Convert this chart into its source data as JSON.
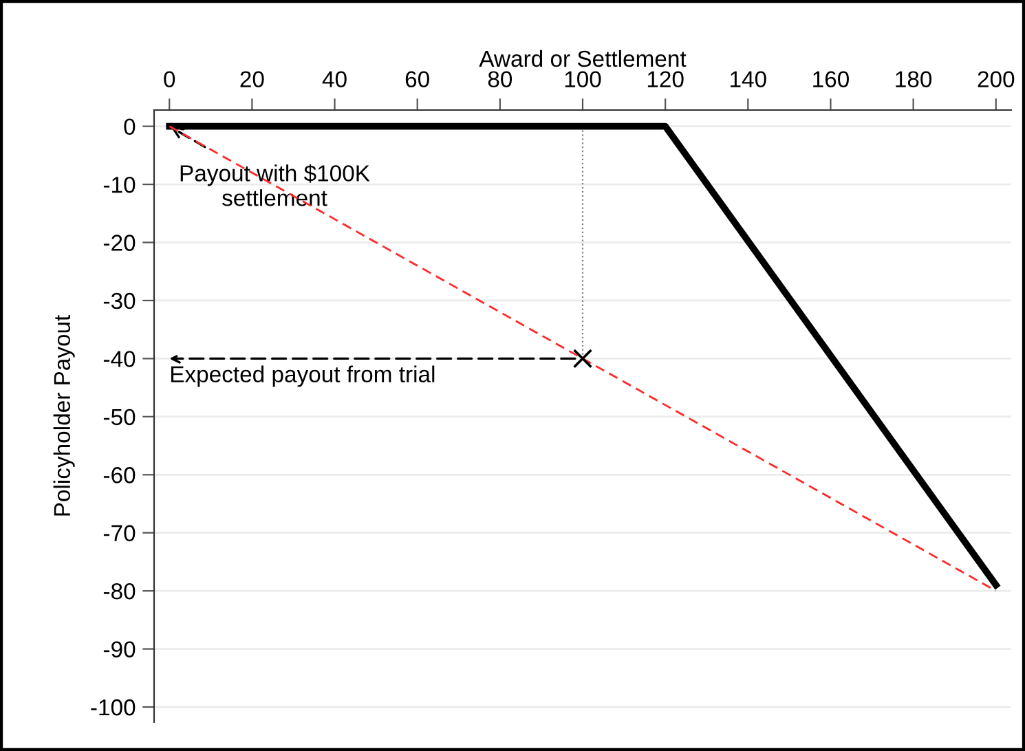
{
  "chart_data": {
    "type": "line",
    "xlabel": "Award or Settlement",
    "ylabel": "Policyholder Payout",
    "xlim": [
      -3.7,
      203.7
    ],
    "xticks": [
      0,
      20,
      40,
      60,
      80,
      100,
      120,
      140,
      160,
      180,
      200
    ],
    "ylim": [
      -102.6,
      2.8
    ],
    "yticks": [
      0,
      -10,
      -20,
      -30,
      -40,
      -50,
      -60,
      -70,
      -80,
      -90,
      -100
    ],
    "grid": "y",
    "legend": false,
    "series": [
      {
        "color": "#000000",
        "line_style": "solid",
        "x": [
          0,
          120,
          200
        ],
        "values": [
          0,
          0,
          -79
        ]
      },
      {
        "color": "#ff2a2a",
        "line_style": "dashed",
        "x": [
          0,
          200
        ],
        "values": [
          0,
          -80
        ]
      },
      {
        "color": "#808080",
        "line_style": "dotted",
        "x": [
          100,
          100
        ],
        "values": [
          0,
          -40
        ]
      },
      {
        "type": "scatter",
        "color": "#000000",
        "marker": "cross",
        "x": [
          100
        ],
        "values": [
          -40
        ]
      }
    ],
    "annotations": [
      {
        "text": "Payout with $100K\nsettlement",
        "x": 0,
        "y": 0
      },
      "Expected payout from trial"
    ]
  }
}
